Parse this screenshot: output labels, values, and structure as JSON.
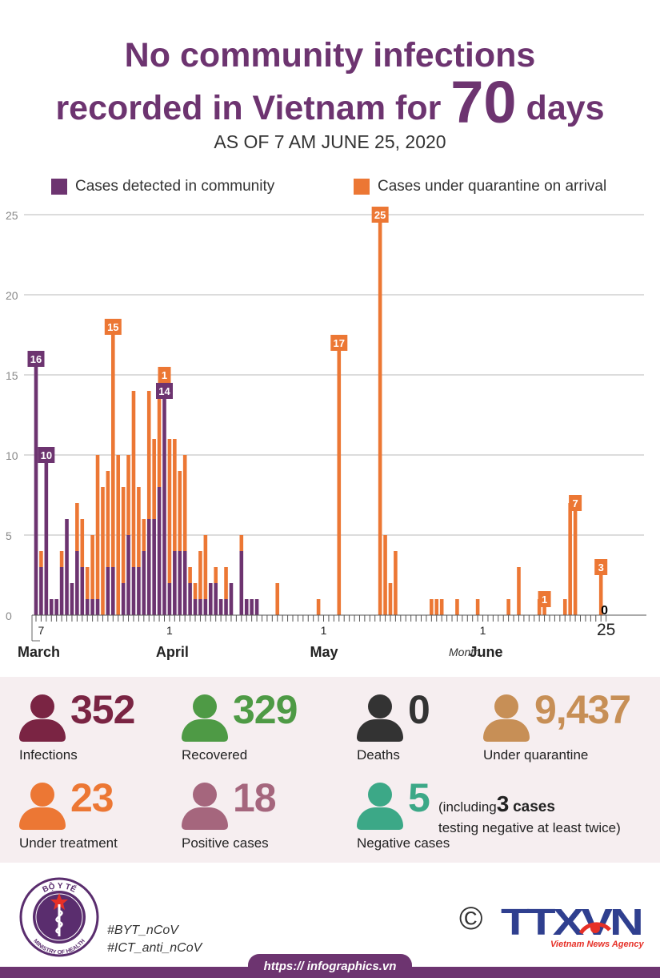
{
  "title": {
    "line1": "No community infections",
    "line2a": "recorded in Vietnam for",
    "line2_number": "70",
    "line2b": "days"
  },
  "subtitle": "AS OF 7 AM JUNE 25, 2020",
  "colors": {
    "purple": "#6d3470",
    "orange": "#ec7734",
    "green": "#4e9a45",
    "tan": "#c78f56",
    "maroon": "#7a2443",
    "mauve": "#a5667d",
    "teal": "#3ca887",
    "dark": "#333333"
  },
  "chart_data": {
    "type": "bar",
    "stacked": true,
    "ylim": [
      0,
      25
    ],
    "yticks": [
      0,
      5,
      10,
      15,
      20,
      25
    ],
    "grid": true,
    "legend_position": "top",
    "x_start": "2020-03-06",
    "x_end": "2020-06-25",
    "series": [
      {
        "name": "Cases detected in community",
        "color": "#6d3470",
        "points": [
          [
            "2020-03-06",
            16
          ],
          [
            "2020-03-07",
            3
          ],
          [
            "2020-03-08",
            10
          ],
          [
            "2020-03-09",
            1
          ],
          [
            "2020-03-10",
            1
          ],
          [
            "2020-03-11",
            3
          ],
          [
            "2020-03-12",
            6
          ],
          [
            "2020-03-13",
            2
          ],
          [
            "2020-03-14",
            4
          ],
          [
            "2020-03-15",
            3
          ],
          [
            "2020-03-16",
            1
          ],
          [
            "2020-03-17",
            1
          ],
          [
            "2020-03-18",
            1
          ],
          [
            "2020-03-20",
            3
          ],
          [
            "2020-03-21",
            3
          ],
          [
            "2020-03-23",
            2
          ],
          [
            "2020-03-24",
            5
          ],
          [
            "2020-03-25",
            3
          ],
          [
            "2020-03-26",
            3
          ],
          [
            "2020-03-27",
            4
          ],
          [
            "2020-03-28",
            6
          ],
          [
            "2020-03-29",
            6
          ],
          [
            "2020-03-30",
            8
          ],
          [
            "2020-03-31",
            14
          ],
          [
            "2020-04-01",
            2
          ],
          [
            "2020-04-02",
            4
          ],
          [
            "2020-04-03",
            4
          ],
          [
            "2020-04-04",
            4
          ],
          [
            "2020-04-05",
            2
          ],
          [
            "2020-04-06",
            1
          ],
          [
            "2020-04-07",
            1
          ],
          [
            "2020-04-08",
            1
          ],
          [
            "2020-04-09",
            2
          ],
          [
            "2020-04-10",
            2
          ],
          [
            "2020-04-11",
            1
          ],
          [
            "2020-04-12",
            1
          ],
          [
            "2020-04-13",
            2
          ],
          [
            "2020-04-15",
            4
          ],
          [
            "2020-04-16",
            1
          ],
          [
            "2020-04-17",
            1
          ],
          [
            "2020-04-18",
            1
          ]
        ]
      },
      {
        "name": "Cases under quarantine on arrival",
        "color": "#ec7734",
        "points": [
          [
            "2020-03-07",
            1
          ],
          [
            "2020-03-11",
            1
          ],
          [
            "2020-03-12",
            0
          ],
          [
            "2020-03-14",
            3
          ],
          [
            "2020-03-15",
            3
          ],
          [
            "2020-03-16",
            2
          ],
          [
            "2020-03-17",
            4
          ],
          [
            "2020-03-18",
            9
          ],
          [
            "2020-03-19",
            8
          ],
          [
            "2020-03-20",
            6
          ],
          [
            "2020-03-21",
            15
          ],
          [
            "2020-03-22",
            10
          ],
          [
            "2020-03-23",
            6
          ],
          [
            "2020-03-24",
            5
          ],
          [
            "2020-03-25",
            11
          ],
          [
            "2020-03-26",
            5
          ],
          [
            "2020-03-27",
            2
          ],
          [
            "2020-03-28",
            8
          ],
          [
            "2020-03-29",
            5
          ],
          [
            "2020-03-30",
            6
          ],
          [
            "2020-03-31",
            1
          ],
          [
            "2020-04-01",
            9
          ],
          [
            "2020-04-02",
            7
          ],
          [
            "2020-04-03",
            5
          ],
          [
            "2020-04-04",
            6
          ],
          [
            "2020-04-05",
            1
          ],
          [
            "2020-04-06",
            1
          ],
          [
            "2020-04-07",
            3
          ],
          [
            "2020-04-08",
            4
          ],
          [
            "2020-04-10",
            1
          ],
          [
            "2020-04-12",
            2
          ],
          [
            "2020-04-15",
            1
          ],
          [
            "2020-04-22",
            2
          ],
          [
            "2020-04-30",
            1
          ],
          [
            "2020-05-04",
            17
          ],
          [
            "2020-05-12",
            25
          ],
          [
            "2020-05-13",
            5
          ],
          [
            "2020-05-14",
            2
          ],
          [
            "2020-05-15",
            4
          ],
          [
            "2020-05-22",
            1
          ],
          [
            "2020-05-23",
            1
          ],
          [
            "2020-05-24",
            1
          ],
          [
            "2020-05-27",
            1
          ],
          [
            "2020-05-31",
            1
          ],
          [
            "2020-06-06",
            1
          ],
          [
            "2020-06-08",
            3
          ],
          [
            "2020-06-12",
            1
          ],
          [
            "2020-06-13",
            1
          ],
          [
            "2020-06-17",
            1
          ],
          [
            "2020-06-18",
            7
          ],
          [
            "2020-06-19",
            7
          ],
          [
            "2020-06-24",
            3
          ]
        ]
      }
    ],
    "bar_labels": [
      {
        "date": "2020-03-06",
        "text": "16",
        "color": "#6d3470"
      },
      {
        "date": "2020-03-08",
        "text": "10",
        "color": "#6d3470"
      },
      {
        "date": "2020-03-21",
        "text": "15",
        "color": "#ec7734"
      },
      {
        "date": "2020-03-31",
        "text": "1",
        "color": "#ec7734"
      },
      {
        "date": "2020-03-31",
        "text": "14",
        "color": "#6d3470"
      },
      {
        "date": "2020-05-04",
        "text": "17",
        "color": "#ec7734"
      },
      {
        "date": "2020-05-12",
        "text": "25",
        "color": "#ec7734"
      },
      {
        "date": "2020-06-13",
        "text": "1",
        "color": "#ec7734"
      },
      {
        "date": "2020-06-19",
        "text": "7",
        "color": "#ec7734"
      },
      {
        "date": "2020-06-24",
        "text": "3",
        "color": "#ec7734"
      },
      {
        "date": "2020-06-25",
        "text": "0",
        "color": "#000000"
      }
    ],
    "x_tick_labels": [
      {
        "date": "2020-03-07",
        "text": "7"
      },
      {
        "date": "2020-04-01",
        "text": "1"
      },
      {
        "date": "2020-05-01",
        "text": "1"
      },
      {
        "date": "2020-06-01",
        "text": "1"
      },
      {
        "date": "2020-06-25",
        "text": "25"
      }
    ],
    "month_labels": [
      {
        "date": "2020-03-07",
        "text": "March"
      },
      {
        "date": "2020-04-01",
        "text": "April"
      },
      {
        "date": "2020-05-01",
        "text": "May"
      },
      {
        "date": "2020-06-01",
        "text": "June"
      }
    ],
    "month_axis_label": "Month"
  },
  "stats": [
    {
      "id": "infections",
      "value": "352",
      "label": "Infections",
      "color": "#7a2443"
    },
    {
      "id": "recovered",
      "value": "329",
      "label": "Recovered",
      "color": "#4e9a45"
    },
    {
      "id": "deaths",
      "value": "0",
      "label": "Deaths",
      "color": "#333333"
    },
    {
      "id": "quarantine",
      "value": "9,437",
      "label": "Under quarantine",
      "color": "#c78f56"
    },
    {
      "id": "treatment",
      "value": "23",
      "label": "Under treatment",
      "color": "#ec7734"
    },
    {
      "id": "positive",
      "value": "18",
      "label": "Positive cases",
      "color": "#a5667d"
    },
    {
      "id": "negative",
      "value": "5",
      "label": "Negative cases",
      "color": "#3ca887"
    }
  ],
  "negative_note": {
    "prefix": "(including",
    "number": "3",
    "cases": "cases",
    "line2": "testing negative at least twice)"
  },
  "footer": {
    "logo_top": "BỘ Y TẾ",
    "logo_bottom": "MINISTRY OF HEALTH",
    "hashtag1": "#BYT_nCoV",
    "hashtag2": "#ICT_anti_nCoV",
    "copyright": "©",
    "agency_logo": "TTXVN",
    "agency_name": "Vietnam News Agency",
    "url": "https:// infographics.vn"
  }
}
